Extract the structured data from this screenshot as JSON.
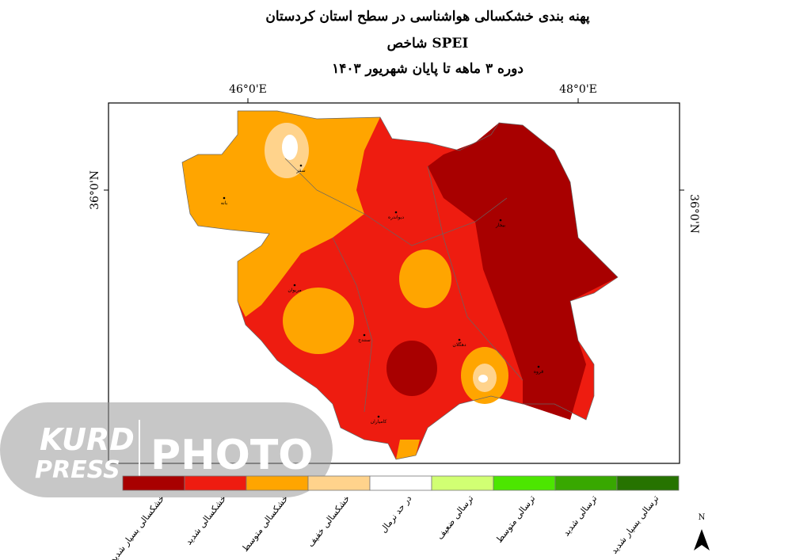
{
  "title": {
    "line1": "پهنه بندی خشکسالی هواشناسی در سطح استان کردستان",
    "line2": "شاخص SPEI",
    "line3": "دوره ۳ ماهه تا پایان شهریور ۱۴۰۳"
  },
  "coordinates": {
    "top": [
      "46°0'E",
      "48°0'E"
    ],
    "left": "36°0'N",
    "right": "36°0'N"
  },
  "cities": [
    "سقز",
    "بانه",
    "دیواندره",
    "بیجار",
    "مریوان",
    "سنندج",
    "دهگلان",
    "قروه",
    "کامیاران"
  ],
  "legend": [
    {
      "label": "خشکسالی بسیار شدید",
      "color": "#a80000"
    },
    {
      "label": "خشکسالی شدید",
      "color": "#ee1c10"
    },
    {
      "label": "خشکسالی متوسط",
      "color": "#ffa500"
    },
    {
      "label": "خشکسالی خفیف",
      "color": "#ffd38c"
    },
    {
      "label": "در حد نرمال",
      "color": "#ffffff"
    },
    {
      "label": "ترسالی ضعیف",
      "color": "#d1ff73"
    },
    {
      "label": "ترسالی متوسط",
      "color": "#4ce600"
    },
    {
      "label": "ترسالی شدید",
      "color": "#38a800"
    },
    {
      "label": "ترسالی بسیار شدید",
      "color": "#267300"
    }
  ],
  "north": "N",
  "watermark": {
    "brand1": "KURD",
    "brand2": "PRESS",
    "brand3": "PHOTO"
  }
}
